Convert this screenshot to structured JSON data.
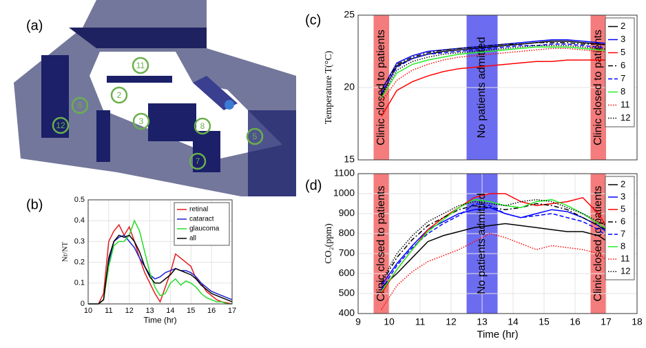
{
  "floorplan": {
    "panel_label": "(a)",
    "room_labels": [
      "11",
      "2",
      "6",
      "3",
      "8",
      "5",
      "12",
      "7"
    ]
  },
  "chart_data": [
    {
      "type": "line",
      "panel_label": "(b)",
      "xlabel": "Time (hr)",
      "ylabel": "Nr/NT",
      "xlim": [
        10,
        17
      ],
      "ylim": [
        0,
        0.5
      ],
      "xticks": [
        10,
        11,
        12,
        13,
        14,
        15,
        16,
        17
      ],
      "yticks": [
        0,
        0.1,
        0.2,
        0.3,
        0.4,
        0.5
      ],
      "grid": true,
      "legend": "upper right",
      "bands": [],
      "x": [
        10,
        10.25,
        10.5,
        10.75,
        11,
        11.25,
        11.5,
        11.75,
        12,
        12.25,
        12.5,
        12.75,
        13,
        13.25,
        13.5,
        13.75,
        14,
        14.25,
        14.5,
        14.75,
        15,
        15.25,
        15.5,
        15.75,
        16,
        16.25,
        16.5,
        16.75,
        17
      ],
      "series": [
        {
          "name": "retinal",
          "color": "#e41a1c",
          "style": "solid",
          "values": [
            0,
            0,
            0,
            0.05,
            0.3,
            0.35,
            0.38,
            0.33,
            0.37,
            0.3,
            0.22,
            0.15,
            0.1,
            0.05,
            0.01,
            0.08,
            0.15,
            0.24,
            0.22,
            0.2,
            0.18,
            0.12,
            0.1,
            0.06,
            0.04,
            0.02,
            0.01,
            0.005,
            0
          ]
        },
        {
          "name": "cataract",
          "color": "#1f1fd0",
          "style": "solid",
          "values": [
            0,
            0,
            0,
            0.02,
            0.2,
            0.3,
            0.32,
            0.33,
            0.3,
            0.27,
            0.22,
            0.18,
            0.14,
            0.12,
            0.13,
            0.15,
            0.16,
            0.17,
            0.16,
            0.16,
            0.15,
            0.13,
            0.1,
            0.08,
            0.06,
            0.05,
            0.04,
            0.03,
            0.02
          ]
        },
        {
          "name": "glaucoma",
          "color": "#22dd22",
          "style": "solid",
          "values": [
            0,
            0,
            0,
            0.02,
            0.18,
            0.28,
            0.3,
            0.3,
            0.33,
            0.4,
            0.35,
            0.25,
            0.15,
            0.08,
            0.04,
            0.05,
            0.1,
            0.12,
            0.09,
            0.11,
            0.1,
            0.08,
            0.05,
            0.03,
            0.02,
            0.01,
            0.01,
            0,
            0
          ]
        },
        {
          "name": "all",
          "color": "#000000",
          "style": "solid",
          "values": [
            0,
            0,
            0,
            0.02,
            0.22,
            0.3,
            0.33,
            0.32,
            0.33,
            0.3,
            0.25,
            0.18,
            0.13,
            0.1,
            0.1,
            0.12,
            0.14,
            0.17,
            0.16,
            0.15,
            0.14,
            0.12,
            0.09,
            0.07,
            0.05,
            0.04,
            0.03,
            0.02,
            0.01
          ]
        }
      ]
    },
    {
      "type": "line",
      "panel_label": "(c)",
      "ylabel": "Temperature T(°C)",
      "xlim": [
        9,
        18
      ],
      "ylim": [
        15,
        25
      ],
      "yticks": [
        15,
        20,
        25
      ],
      "grid": true,
      "legend": "upper right",
      "bands": [
        {
          "xlim": [
            9.5,
            10
          ],
          "color": "#f47c7c",
          "label": "Clinic closed to patients"
        },
        {
          "xlim": [
            12.5,
            13.5
          ],
          "color": "#6c6cf0",
          "label": "No patients admitted"
        },
        {
          "xlim": [
            16.5,
            17
          ],
          "color": "#f47c7c",
          "label": "Clinic closed to patients"
        }
      ],
      "x": [
        9.75,
        10.25,
        10.75,
        11.25,
        11.75,
        12.25,
        12.75,
        13.25,
        13.75,
        14.25,
        14.75,
        15.25,
        15.75,
        16.25,
        16.75,
        17.25
      ],
      "series": [
        {
          "name": "2",
          "color": "#000000",
          "style": "solid",
          "values": [
            19.5,
            21.5,
            22,
            22.3,
            22.5,
            22.6,
            22.7,
            22.8,
            22.9,
            23,
            23.1,
            23.2,
            23.2,
            23.1,
            23,
            22.9
          ]
        },
        {
          "name": "3",
          "color": "#0000ff",
          "style": "solid",
          "values": [
            19.8,
            21.7,
            22.2,
            22.5,
            22.6,
            22.7,
            22.8,
            22.9,
            23,
            23.1,
            23.2,
            23.3,
            23.3,
            23.2,
            23.1,
            23
          ]
        },
        {
          "name": "5",
          "color": "#ff0000",
          "style": "solid",
          "values": [
            18,
            19.8,
            20.4,
            20.8,
            21.1,
            21.3,
            21.4,
            21.5,
            21.6,
            21.7,
            21.8,
            21.8,
            21.9,
            21.9,
            21.9,
            21.9
          ]
        },
        {
          "name": "6",
          "color": "#000000",
          "style": "dashdot",
          "values": [
            19.8,
            21.6,
            22.1,
            22.4,
            22.6,
            22.7,
            22.8,
            22.9,
            23,
            23,
            23.1,
            23.1,
            23.1,
            23,
            23,
            22.9
          ]
        },
        {
          "name": "7",
          "color": "#0000ff",
          "style": "dashed",
          "values": [
            19.6,
            21.4,
            22,
            22.3,
            22.4,
            22.5,
            22.6,
            22.7,
            22.8,
            22.9,
            22.9,
            23,
            23,
            22.9,
            22.8,
            22.7
          ]
        },
        {
          "name": "8",
          "color": "#22ee22",
          "style": "solid",
          "values": [
            19.3,
            21,
            21.6,
            21.9,
            22.1,
            22.3,
            22.4,
            22.5,
            22.6,
            22.7,
            22.8,
            22.8,
            22.8,
            22.7,
            22.6,
            22.5
          ]
        },
        {
          "name": "11",
          "color": "#ff0000",
          "style": "dotted",
          "values": [
            19,
            20.5,
            21.2,
            21.6,
            21.9,
            22.1,
            22.2,
            22.3,
            22.4,
            22.5,
            22.6,
            22.7,
            22.7,
            22.6,
            22.5,
            22.4
          ]
        },
        {
          "name": "12",
          "color": "#000000",
          "style": "dotted",
          "values": [
            19.4,
            21.2,
            21.8,
            22.1,
            22.3,
            22.4,
            22.5,
            22.6,
            22.7,
            22.8,
            22.9,
            22.9,
            22.9,
            22.8,
            22.7,
            22.6
          ]
        }
      ]
    },
    {
      "type": "line",
      "panel_label": "(d)",
      "xlabel": "Time (hr)",
      "ylabel": "CO₂(ppm)",
      "xlim": [
        9,
        18
      ],
      "ylim": [
        400,
        1100
      ],
      "xticks": [
        9,
        10,
        11,
        12,
        13,
        14,
        15,
        16,
        17,
        18
      ],
      "yticks": [
        400,
        500,
        600,
        700,
        800,
        900,
        1000,
        1100
      ],
      "grid": true,
      "legend": "upper right",
      "bands": [
        {
          "xlim": [
            9.5,
            10
          ],
          "color": "#f47c7c",
          "label": "Clinic closed to patients"
        },
        {
          "xlim": [
            12.5,
            13.5
          ],
          "color": "#6c6cf0",
          "label": "No patients admitted"
        },
        {
          "xlim": [
            16.5,
            17
          ],
          "color": "#f47c7c",
          "label": "Clinic closed to patients"
        }
      ],
      "x": [
        9.75,
        10.25,
        10.75,
        11.25,
        11.75,
        12.25,
        12.75,
        13.25,
        13.75,
        14.25,
        14.75,
        15.25,
        15.75,
        16.25,
        16.75,
        17.25
      ],
      "series": [
        {
          "name": "2",
          "color": "#000000",
          "style": "solid",
          "values": [
            530,
            600,
            680,
            760,
            790,
            810,
            830,
            840,
            850,
            840,
            830,
            820,
            810,
            810,
            790,
            740
          ]
        },
        {
          "name": "3",
          "color": "#0000ff",
          "style": "solid",
          "values": [
            540,
            650,
            740,
            820,
            860,
            900,
            920,
            930,
            900,
            880,
            900,
            920,
            910,
            880,
            840,
            780
          ]
        },
        {
          "name": "5",
          "color": "#ff0000",
          "style": "solid",
          "values": [
            500,
            620,
            720,
            820,
            880,
            930,
            980,
            1000,
            1000,
            960,
            940,
            950,
            960,
            980,
            900,
            780
          ]
        },
        {
          "name": "6",
          "color": "#000000",
          "style": "dashdot",
          "values": [
            550,
            680,
            770,
            840,
            880,
            920,
            940,
            930,
            920,
            930,
            950,
            940,
            920,
            880,
            840,
            800
          ]
        },
        {
          "name": "7",
          "color": "#0000ff",
          "style": "dashed",
          "values": [
            520,
            640,
            730,
            800,
            850,
            890,
            950,
            940,
            900,
            880,
            890,
            900,
            880,
            860,
            820,
            760
          ]
        },
        {
          "name": "8",
          "color": "#22ee22",
          "style": "solid",
          "values": [
            510,
            620,
            720,
            810,
            870,
            930,
            970,
            960,
            940,
            930,
            960,
            970,
            940,
            900,
            850,
            800
          ]
        },
        {
          "name": "11",
          "color": "#ff0000",
          "style": "dotted",
          "values": [
            420,
            540,
            610,
            660,
            690,
            720,
            760,
            800,
            780,
            750,
            720,
            740,
            730,
            720,
            700,
            640
          ]
        },
        {
          "name": "12",
          "color": "#000000",
          "style": "dotted",
          "values": [
            560,
            700,
            790,
            860,
            900,
            940,
            960,
            950,
            940,
            960,
            970,
            960,
            930,
            900,
            860,
            820
          ]
        }
      ]
    }
  ]
}
